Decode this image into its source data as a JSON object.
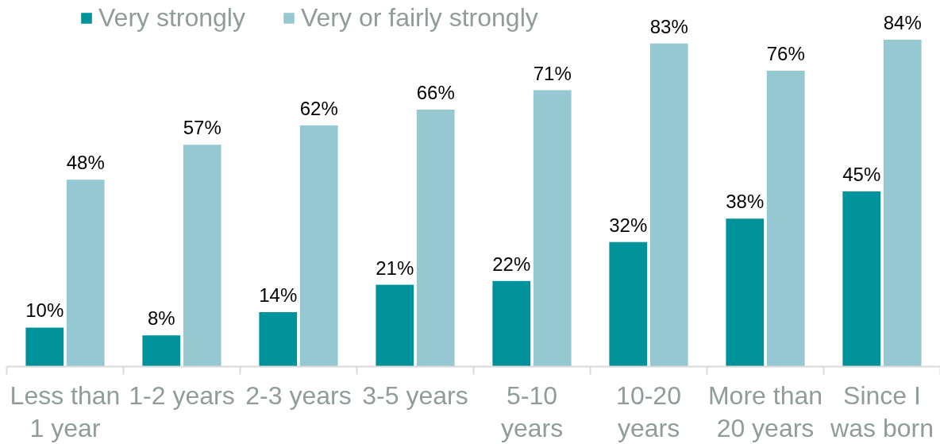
{
  "chart_data": {
    "type": "bar",
    "categories": [
      "Less than\n1 year",
      "1-2 years",
      "2-3 years",
      "3-5 years",
      "5-10\nyears",
      "10-20\nyears",
      "More than\n20 years",
      "Since I\nwas born"
    ],
    "series": [
      {
        "name": "Very strongly",
        "color": "#00929b",
        "values": [
          10,
          8,
          14,
          21,
          22,
          32,
          38,
          45
        ],
        "value_labels": [
          "10%",
          "8%",
          "14%",
          "21%",
          "22%",
          "32%",
          "38%",
          "45%"
        ]
      },
      {
        "name": "Very or fairly strongly",
        "color": "#96c8d2",
        "values": [
          48,
          57,
          62,
          66,
          71,
          83,
          76,
          84
        ],
        "value_labels": [
          "48%",
          "57%",
          "62%",
          "66%",
          "71%",
          "83%",
          "76%",
          "84%"
        ]
      }
    ],
    "legend": "top"
  }
}
